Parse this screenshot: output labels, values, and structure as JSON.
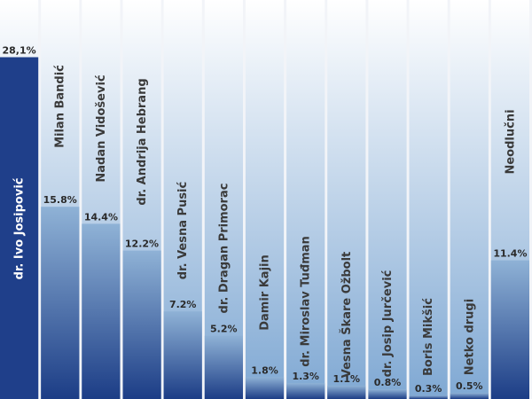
{
  "chart_data": {
    "type": "bar",
    "categories": [
      "dr. Ivo Josipović",
      "Milan Bandić",
      "Nadan Vidošević",
      "dr. Andrija Hebrang",
      "dr. Vesna Pusić",
      "dr. Dragan Primorac",
      "Damir Kajin",
      "dr. Miroslav Tuđman",
      "Vesna Škare Ožbolt",
      "dr. Josip Jurčević",
      "Boris Mikšić",
      "Netko drugi",
      "Neodlučni"
    ],
    "values": [
      28.1,
      15.8,
      14.4,
      12.2,
      7.2,
      5.2,
      1.8,
      1.3,
      1.1,
      0.8,
      0.3,
      0.5,
      11.4
    ],
    "value_labels": [
      "28,1%",
      "15.8%",
      "14.4%",
      "12.2%",
      "7.2%",
      "5.2%",
      "1.8%",
      "1.3%",
      "1.1%",
      "0.8%",
      "0.3%",
      "0.5%",
      "11.4%"
    ],
    "ylim": [
      0,
      32.8
    ],
    "colors": {
      "first_bar": "#1f3f8a",
      "bar_top": "#8fb2d6",
      "bar_bottom": "#1c3d86",
      "background_top": "#ffffff",
      "background_bottom": "#7fa8d3",
      "page": "#f2f4f8"
    }
  }
}
